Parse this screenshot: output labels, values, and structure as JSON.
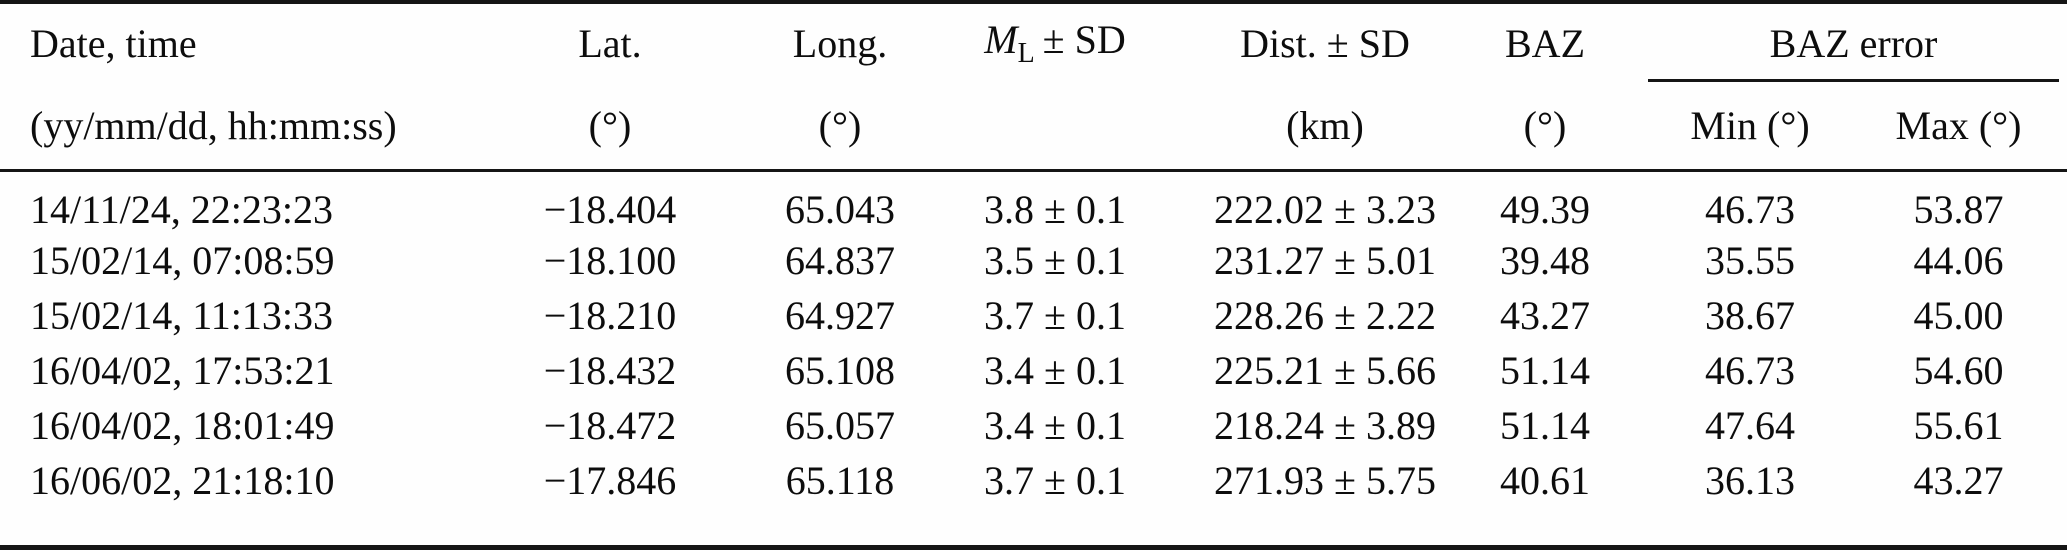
{
  "table": {
    "header": {
      "date": {
        "line1": "Date, time",
        "line2": "(yy/mm/dd, hh:mm:ss)"
      },
      "lat": {
        "line1": "Lat.",
        "line2": "(°)"
      },
      "long": {
        "line1": "Long.",
        "line2": "(°)"
      },
      "ml": {
        "m": "M",
        "sub": "L",
        "rest": "± SD"
      },
      "dist": {
        "line1": "Dist. ± SD",
        "line2": "(km)"
      },
      "baz": {
        "line1": "BAZ",
        "line2": "(°)"
      },
      "baz_error": {
        "label": "BAZ error",
        "min": "Min (°)",
        "max": "Max (°)"
      }
    },
    "rows": [
      {
        "date": "14/11/24, 22:23:23",
        "lat": "−18.404",
        "long": "65.043",
        "ml": "3.8 ± 0.1",
        "dist": "222.02 ± 3.23",
        "baz": "49.39",
        "min": "46.73",
        "max": "53.87"
      },
      {
        "date": "15/02/14, 07:08:59",
        "lat": "−18.100",
        "long": "64.837",
        "ml": "3.5 ± 0.1",
        "dist": "231.27 ± 5.01",
        "baz": "39.48",
        "min": "35.55",
        "max": "44.06"
      },
      {
        "date": "15/02/14, 11:13:33",
        "lat": "−18.210",
        "long": "64.927",
        "ml": "3.7 ± 0.1",
        "dist": "228.26 ± 2.22",
        "baz": "43.27",
        "min": "38.67",
        "max": "45.00"
      },
      {
        "date": "16/04/02, 17:53:21",
        "lat": "−18.432",
        "long": "65.108",
        "ml": "3.4 ± 0.1",
        "dist": "225.21 ± 5.66",
        "baz": "51.14",
        "min": "46.73",
        "max": "54.60"
      },
      {
        "date": "16/04/02, 18:01:49",
        "lat": "−18.472",
        "long": "65.057",
        "ml": "3.4 ± 0.1",
        "dist": "218.24 ± 3.89",
        "baz": "51.14",
        "min": "47.64",
        "max": "55.61"
      },
      {
        "date": "16/06/02, 21:18:10",
        "lat": "−17.846",
        "long": "65.118",
        "ml": "3.7 ± 0.1",
        "dist": "271.93 ± 5.75",
        "baz": "40.61",
        "min": "36.13",
        "max": "43.27"
      }
    ]
  }
}
